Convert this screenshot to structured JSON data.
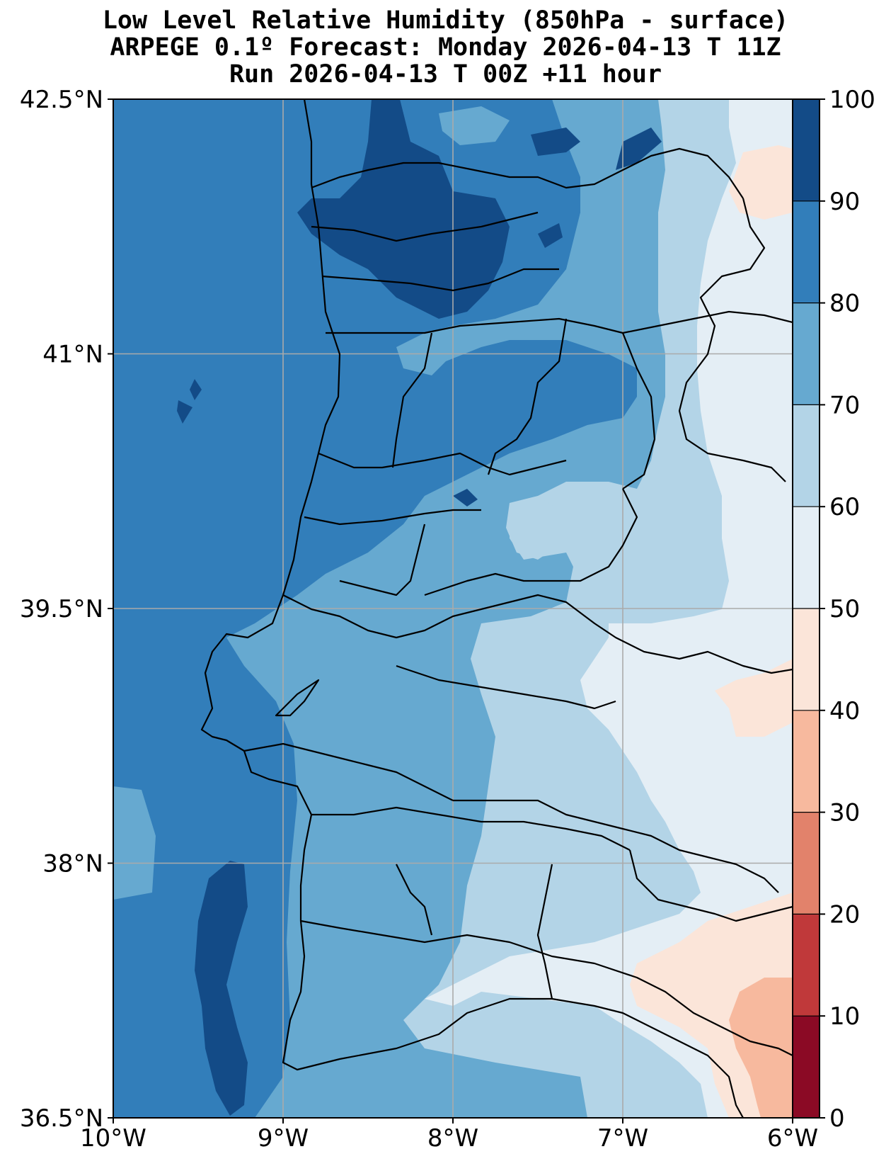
{
  "title": {
    "line1": "Low Level Relative Humidity (850hPa - surface)",
    "line2": "ARPEGE 0.1º Forecast: Monday 2026-04-13 T 11Z",
    "line3": "Run 2026-04-13 T 00Z +11 hour"
  },
  "map": {
    "lon_range": [
      -10,
      -6
    ],
    "lat_range": [
      36.5,
      42.5
    ],
    "lon_ticks": [
      {
        "value": -10,
        "label": "10°W"
      },
      {
        "value": -9,
        "label": "9°W"
      },
      {
        "value": -8,
        "label": "8°W"
      },
      {
        "value": -7,
        "label": "7°W"
      },
      {
        "value": -6,
        "label": "6°W"
      }
    ],
    "lat_ticks": [
      {
        "value": 42.5,
        "label": "42.5°N"
      },
      {
        "value": 41,
        "label": "41°N"
      },
      {
        "value": 39.5,
        "label": "39.5°N"
      },
      {
        "value": 38,
        "label": "38°N"
      },
      {
        "value": 36.5,
        "label": "36.5°N"
      }
    ]
  },
  "colorbar": {
    "levels": [
      {
        "from": 0,
        "to": 10,
        "color": "#8b0a25"
      },
      {
        "from": 10,
        "to": 20,
        "color": "#c0393a"
      },
      {
        "from": 20,
        "to": 30,
        "color": "#e2826b"
      },
      {
        "from": 30,
        "to": 40,
        "color": "#f7b99e"
      },
      {
        "from": 40,
        "to": 50,
        "color": "#fbe5d9"
      },
      {
        "from": 50,
        "to": 60,
        "color": "#e4eef5"
      },
      {
        "from": 60,
        "to": 70,
        "color": "#b3d4e7"
      },
      {
        "from": 70,
        "to": 80,
        "color": "#66a9d0"
      },
      {
        "from": 80,
        "to": 90,
        "color": "#327eba"
      },
      {
        "from": 90,
        "to": 100,
        "color": "#134b87"
      }
    ],
    "tick_labels": [
      "0",
      "10",
      "20",
      "30",
      "40",
      "50",
      "60",
      "70",
      "80",
      "90",
      "100"
    ]
  }
}
